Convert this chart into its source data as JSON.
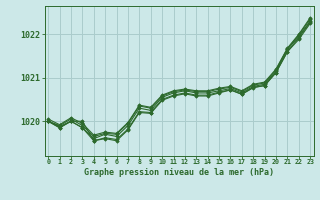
{
  "title": "Graphe pression niveau de la mer (hPa)",
  "background_color": "#cce8e8",
  "grid_color": "#aacccc",
  "line_color": "#2d6a2d",
  "marker_color": "#2d6a2d",
  "xlim": [
    -0.3,
    23.3
  ],
  "ylim": [
    1019.2,
    1022.65
  ],
  "yticks": [
    1020,
    1021,
    1022
  ],
  "xticks": [
    0,
    1,
    2,
    3,
    4,
    5,
    6,
    7,
    8,
    9,
    10,
    11,
    12,
    13,
    14,
    15,
    16,
    17,
    18,
    19,
    20,
    21,
    22,
    23
  ],
  "series": [
    [
      1020.0,
      1019.85,
      1020.0,
      1019.85,
      1019.6,
      1019.7,
      1019.65,
      1019.9,
      1020.3,
      1020.25,
      1020.55,
      1020.65,
      1020.7,
      1020.65,
      1020.65,
      1020.7,
      1020.75,
      1020.65,
      1020.8,
      1020.85,
      1021.15,
      1021.65,
      1021.95,
      1022.3
    ],
    [
      1020.0,
      1019.85,
      1020.0,
      1020.0,
      1019.55,
      1019.6,
      1019.55,
      1019.8,
      1020.2,
      1020.18,
      1020.48,
      1020.58,
      1020.63,
      1020.58,
      1020.58,
      1020.65,
      1020.72,
      1020.62,
      1020.78,
      1020.82,
      1021.12,
      1021.6,
      1021.88,
      1022.25
    ],
    [
      1020.0,
      1019.9,
      1020.05,
      1019.9,
      1019.65,
      1019.72,
      1019.7,
      1019.95,
      1020.35,
      1020.3,
      1020.58,
      1020.68,
      1020.72,
      1020.68,
      1020.68,
      1020.74,
      1020.78,
      1020.68,
      1020.83,
      1020.88,
      1021.18,
      1021.67,
      1021.98,
      1022.35
    ],
    [
      1020.05,
      1019.92,
      1020.08,
      1019.95,
      1019.68,
      1019.75,
      1019.72,
      1019.97,
      1020.37,
      1020.32,
      1020.6,
      1020.7,
      1020.74,
      1020.7,
      1020.7,
      1020.76,
      1020.8,
      1020.7,
      1020.85,
      1020.9,
      1021.2,
      1021.68,
      1022.0,
      1022.38
    ],
    [
      1020.0,
      1019.88,
      1020.0,
      1019.85,
      1019.55,
      1019.62,
      1019.58,
      1019.82,
      1020.22,
      1020.2,
      1020.5,
      1020.6,
      1020.65,
      1020.6,
      1020.6,
      1020.67,
      1020.72,
      1020.62,
      1020.77,
      1020.82,
      1021.12,
      1021.6,
      1021.92,
      1022.28
    ]
  ]
}
